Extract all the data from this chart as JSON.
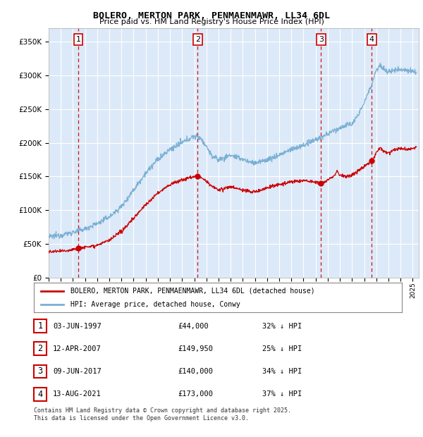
{
  "title": "BOLERO, MERTON PARK, PENMAENMAWR, LL34 6DL",
  "subtitle": "Price paid vs. HM Land Registry's House Price Index (HPI)",
  "ylim": [
    0,
    370000
  ],
  "yticks": [
    0,
    50000,
    100000,
    150000,
    200000,
    250000,
    300000,
    350000
  ],
  "ytick_labels": [
    "£0",
    "£50K",
    "£100K",
    "£150K",
    "£200K",
    "£250K",
    "£300K",
    "£350K"
  ],
  "xlim_start": 1995.0,
  "xlim_end": 2025.5,
  "background_color": "#dce9f8",
  "grid_color": "#ffffff",
  "sale_color": "#cc0000",
  "hpi_color": "#7ab0d4",
  "legend_sale_label": "BOLERO, MERTON PARK, PENMAENMAWR, LL34 6DL (detached house)",
  "legend_hpi_label": "HPI: Average price, detached house, Conwy",
  "transactions": [
    {
      "num": 1,
      "date_year": 1997.44,
      "price": 44000,
      "date_str": "03-JUN-1997",
      "price_str": "£44,000",
      "hpi_str": "32% ↓ HPI"
    },
    {
      "num": 2,
      "date_year": 2007.28,
      "price": 149950,
      "date_str": "12-APR-2007",
      "price_str": "£149,950",
      "hpi_str": "25% ↓ HPI"
    },
    {
      "num": 3,
      "date_year": 2017.44,
      "price": 140000,
      "date_str": "09-JUN-2017",
      "price_str": "£140,000",
      "hpi_str": "34% ↓ HPI"
    },
    {
      "num": 4,
      "date_year": 2021.62,
      "price": 173000,
      "date_str": "13-AUG-2021",
      "price_str": "£173,000",
      "hpi_str": "37% ↓ HPI"
    }
  ],
  "footer": "Contains HM Land Registry data © Crown copyright and database right 2025.\nThis data is licensed under the Open Government Licence v3.0."
}
